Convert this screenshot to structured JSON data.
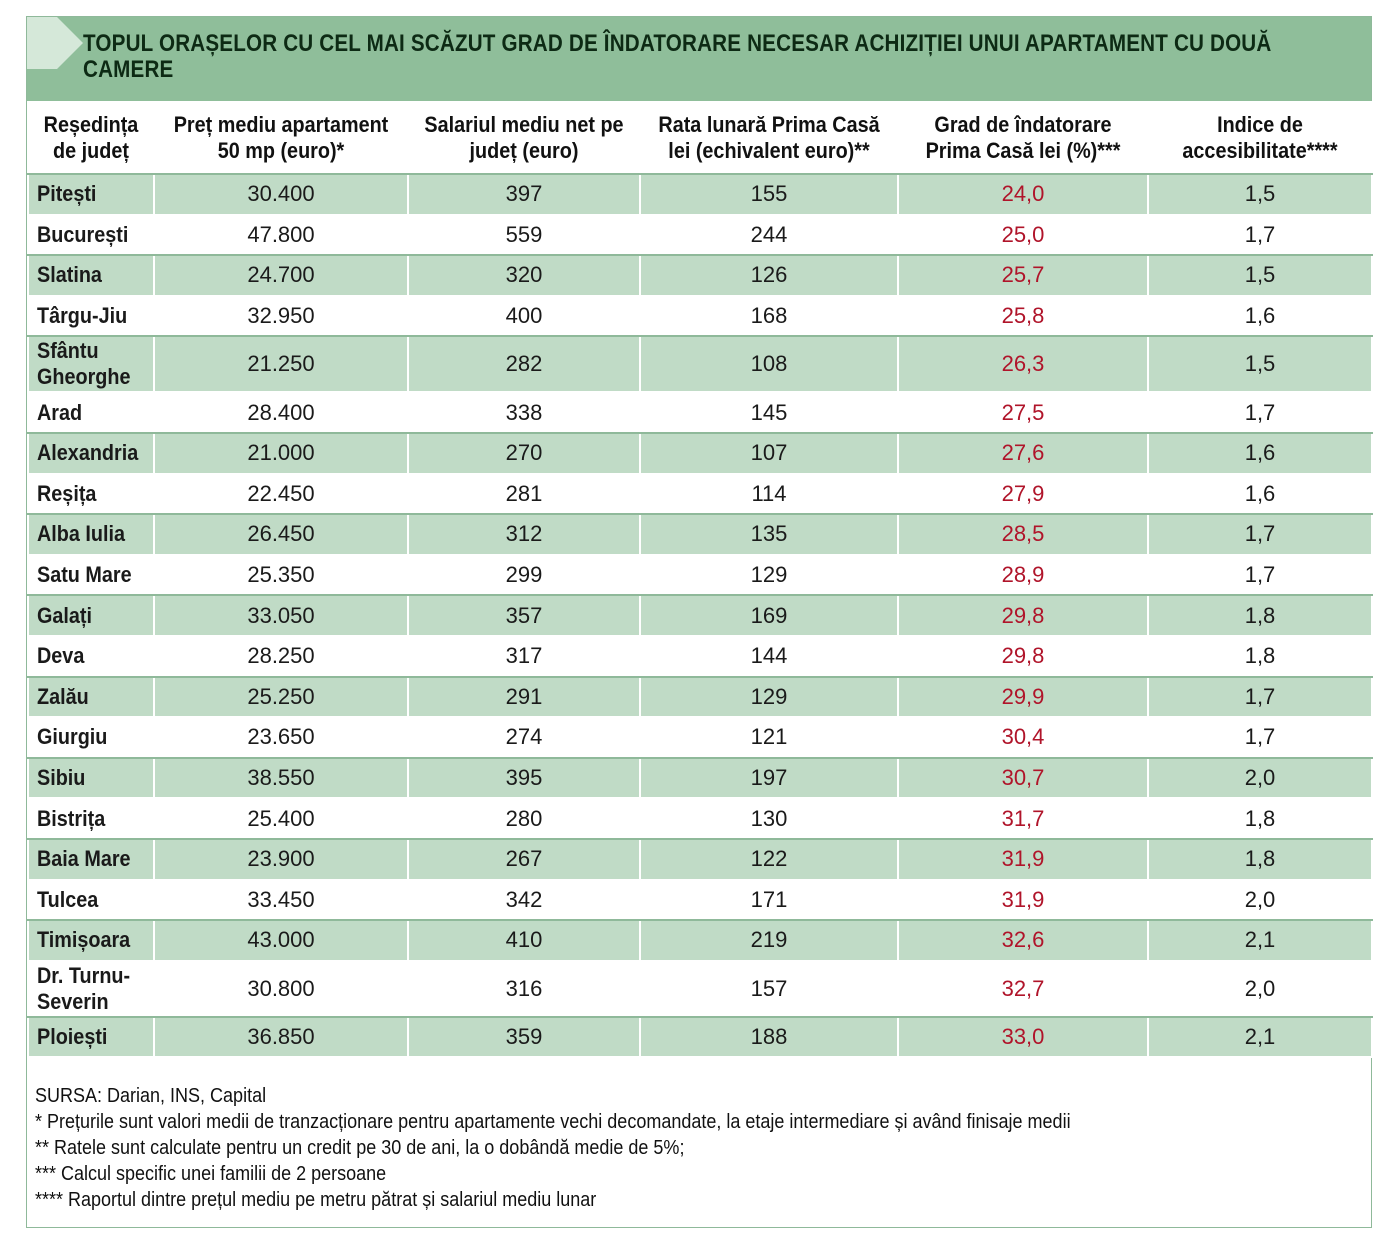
{
  "title": "TOPUL ORAȘELOR CU CEL MAI SCĂZUT GRAD DE ÎNDATORARE NECESAR ACHIZIȚIEI UNUI APARTAMENT CU DOUĂ CAMERE",
  "colors": {
    "header_green": "#8fbe9a",
    "row_green": "#c0dbc6",
    "grad_red": "#b0142a"
  },
  "columns": [
    "Reședința de județ",
    "Preț mediu apartament 50 mp (euro)*",
    "Salariul mediu net pe județ (euro)",
    "Rata lunară Prima Casă lei (echivalent euro)**",
    "Grad de îndatorare Prima Casă lei (%)***",
    "Indice de accesibilitate****"
  ],
  "rows": [
    [
      "Pitești",
      "30.400",
      "397",
      "155",
      "24,0",
      "1,5"
    ],
    [
      "București",
      "47.800",
      "559",
      "244",
      "25,0",
      "1,7"
    ],
    [
      "Slatina",
      "24.700",
      "320",
      "126",
      "25,7",
      "1,5"
    ],
    [
      "Târgu-Jiu",
      "32.950",
      "400",
      "168",
      "25,8",
      "1,6"
    ],
    [
      "Sfântu Gheorghe",
      "21.250",
      "282",
      "108",
      "26,3",
      "1,5"
    ],
    [
      "Arad",
      "28.400",
      "338",
      "145",
      "27,5",
      "1,7"
    ],
    [
      "Alexandria",
      "21.000",
      "270",
      "107",
      "27,6",
      "1,6"
    ],
    [
      "Reșița",
      "22.450",
      "281",
      "114",
      "27,9",
      "1,6"
    ],
    [
      "Alba Iulia",
      "26.450",
      "312",
      "135",
      "28,5",
      "1,7"
    ],
    [
      "Satu Mare",
      "25.350",
      "299",
      "129",
      "28,9",
      "1,7"
    ],
    [
      "Galați",
      "33.050",
      "357",
      "169",
      "29,8",
      "1,8"
    ],
    [
      "Deva",
      "28.250",
      "317",
      "144",
      "29,8",
      "1,8"
    ],
    [
      "Zalău",
      "25.250",
      "291",
      "129",
      "29,9",
      "1,7"
    ],
    [
      "Giurgiu",
      "23.650",
      "274",
      "121",
      "30,4",
      "1,7"
    ],
    [
      "Sibiu",
      "38.550",
      "395",
      "197",
      "30,7",
      "2,0"
    ],
    [
      "Bistrița",
      "25.400",
      "280",
      "130",
      "31,7",
      "1,8"
    ],
    [
      "Baia Mare",
      "23.900",
      "267",
      "122",
      "31,9",
      "1,8"
    ],
    [
      "Tulcea",
      "33.450",
      "342",
      "171",
      "31,9",
      "2,0"
    ],
    [
      "Timișoara",
      "43.000",
      "410",
      "219",
      "32,6",
      "2,1"
    ],
    [
      "Dr. Turnu-Severin",
      "30.800",
      "316",
      "157",
      "32,7",
      "2,0"
    ],
    [
      "Ploiești",
      "36.850",
      "359",
      "188",
      "33,0",
      "2,1"
    ]
  ],
  "notes": [
    "SURSA: Darian, INS, Capital",
    "* Prețurile sunt valori medii de tranzacționare pentru apartamente vechi decomandate, la etaje intermediare și având finisaje medii",
    "** Ratele sunt calculate pentru un credit pe 30 de ani, la o dobândă medie de 5%;",
    "*** Calcul specific unei familii de 2 persoane",
    "**** Raportul dintre prețul mediu pe metru pătrat și salariul mediu lunar"
  ]
}
